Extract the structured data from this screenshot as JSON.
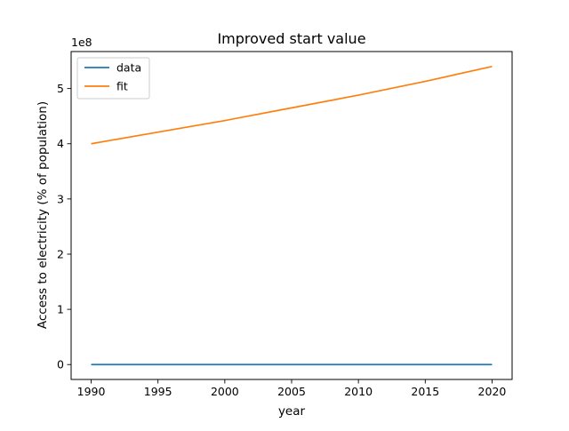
{
  "chart_data": {
    "type": "line",
    "title": "Improved start value",
    "xlabel": "year",
    "ylabel": "Access to electricity (% of population)",
    "y_offset_label": "1e8",
    "xlim": [
      1988.5,
      2021.5
    ],
    "ylim": [
      -27000000,
      567000000
    ],
    "x_ticks": [
      1990,
      1995,
      2000,
      2005,
      2010,
      2015,
      2020
    ],
    "x_tick_labels": [
      "1990",
      "1995",
      "2000",
      "2005",
      "2010",
      "2015",
      "2020"
    ],
    "y_ticks": [
      0,
      100000000,
      200000000,
      300000000,
      400000000,
      500000000
    ],
    "y_tick_labels": [
      "0",
      "1",
      "2",
      "3",
      "4",
      "5"
    ],
    "grid": false,
    "legend_position": "upper-left",
    "x": [
      1990,
      1995,
      2000,
      2005,
      2010,
      2015,
      2020
    ],
    "series": [
      {
        "name": "data",
        "color": "#1f77b4",
        "values": [
          71,
          73,
          76,
          79,
          83,
          87,
          91
        ]
      },
      {
        "name": "fit",
        "color": "#ff7f0e",
        "values": [
          400000000,
          421000000,
          442000000,
          465000000,
          488000000,
          513000000,
          540000000
        ]
      }
    ]
  }
}
